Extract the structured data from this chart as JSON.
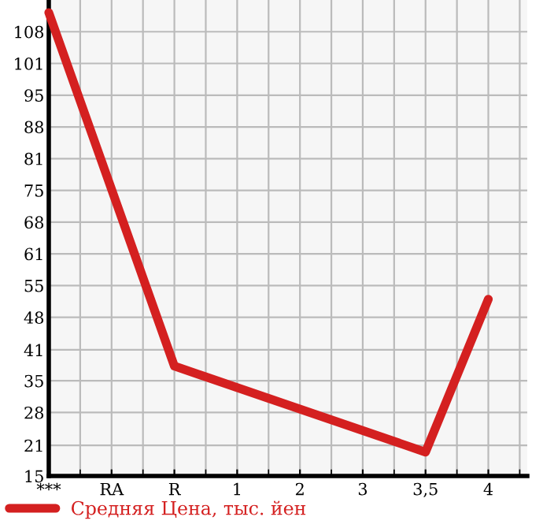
{
  "chart_data": {
    "type": "line",
    "categories": [
      "***",
      "RA",
      "R",
      "1",
      "2",
      "3",
      "3,5",
      "4"
    ],
    "series": [
      {
        "name": "Средняя Цена, тыс. йен",
        "color": "#d42020",
        "values": [
          112,
          null,
          38,
          null,
          null,
          null,
          20,
          52
        ]
      }
    ],
    "ylim": [
      15,
      114.64
    ],
    "yticks": [
      {
        "value": 15,
        "label": "15"
      },
      {
        "value": 21.4,
        "label": "21"
      },
      {
        "value": 28.29,
        "label": "28"
      },
      {
        "value": 34.93,
        "label": "35"
      },
      {
        "value": 41.4,
        "label": "41"
      },
      {
        "value": 48.21,
        "label": "48"
      },
      {
        "value": 54.86,
        "label": "55"
      },
      {
        "value": 61.5,
        "label": "61"
      },
      {
        "value": 68.14,
        "label": "68"
      },
      {
        "value": 74.79,
        "label": "75"
      },
      {
        "value": 81.43,
        "label": "81"
      },
      {
        "value": 88.07,
        "label": "88"
      },
      {
        "value": 94.71,
        "label": "95"
      },
      {
        "value": 101.36,
        "label": "101"
      },
      {
        "value": 108,
        "label": "108"
      }
    ],
    "grid": true,
    "legend": "bottom left",
    "marker": "none",
    "line_style": "solid"
  }
}
